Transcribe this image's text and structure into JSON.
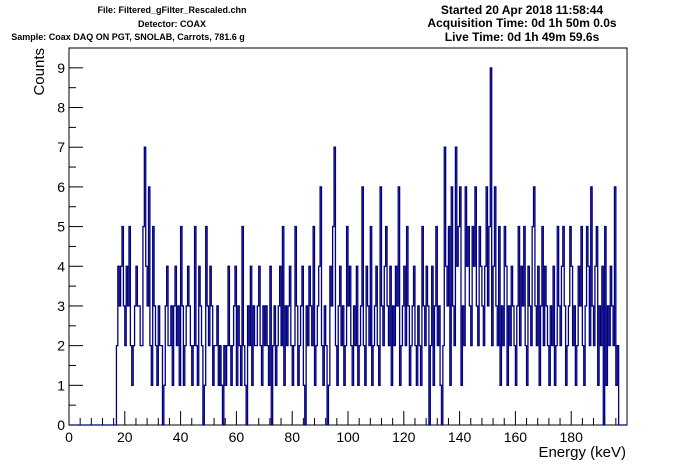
{
  "header": {
    "file_line": "File: Filtered_gFilter_Rescaled.chn",
    "detector_line": "Detector: COAX",
    "sample_line": "Sample: Coax DAQ ON PGT, SNOLAB, Carrots, 781.6 g",
    "started_line": "Started 20 Apr 2018 11:58:44",
    "acquisition_line": "Acquisition Time: 0d 1h 50m 0.0s",
    "live_line": "Live Time: 0d 1h 49m 59.6s"
  },
  "colors": {
    "line": "#000080",
    "axis": "#000000",
    "background": "#ffffff"
  },
  "chart_data": {
    "type": "histogram",
    "title": "",
    "xlabel": "Energy (keV)",
    "ylabel": "Counts",
    "xlim": [
      0,
      200
    ],
    "ylim": [
      0,
      9.5
    ],
    "xticks": [
      0,
      20,
      40,
      60,
      80,
      100,
      120,
      140,
      160,
      180
    ],
    "xtick_labels": [
      "0",
      "20",
      "40",
      "60",
      "80",
      "100",
      "120",
      "140",
      "160",
      "180"
    ],
    "yticks": [
      0,
      1,
      2,
      3,
      4,
      5,
      6,
      7,
      8,
      9
    ],
    "ytick_labels": [
      "0",
      "1",
      "2",
      "3",
      "4",
      "5",
      "6",
      "7",
      "8",
      "9"
    ],
    "grid": false,
    "legend": "none",
    "bin_width": 0.5,
    "bin_start": 17,
    "counts": [
      2,
      4,
      3,
      4,
      5,
      3,
      2,
      4,
      3,
      5,
      2,
      1,
      2,
      3,
      4,
      3,
      3,
      2,
      2,
      5,
      7,
      4,
      3,
      6,
      2,
      1,
      5,
      3,
      2,
      1,
      3,
      2,
      2,
      0,
      1,
      3,
      4,
      2,
      2,
      3,
      1,
      3,
      4,
      2,
      3,
      1,
      5,
      3,
      1,
      2,
      3,
      4,
      3,
      2,
      1,
      2,
      5,
      2,
      1,
      4,
      3,
      2,
      0,
      1,
      5,
      3,
      2,
      4,
      3,
      1,
      2,
      2,
      3,
      1,
      2,
      1,
      0,
      2,
      1,
      2,
      4,
      2,
      1,
      2,
      3,
      4,
      1,
      3,
      2,
      1,
      5,
      2,
      1,
      0,
      3,
      2,
      4,
      1,
      3,
      2,
      2,
      3,
      4,
      2,
      1,
      3,
      2,
      3,
      2,
      1,
      4,
      0,
      2,
      3,
      1,
      2,
      3,
      4,
      2,
      5,
      1,
      3,
      2,
      3,
      4,
      2,
      1,
      2,
      5,
      3,
      1,
      2,
      3,
      4,
      1,
      0,
      3,
      2,
      4,
      3,
      2,
      5,
      1,
      2,
      3,
      4,
      6,
      2,
      1,
      3,
      2,
      0,
      1,
      4,
      3,
      5,
      7,
      2,
      1,
      3,
      4,
      2,
      3,
      1,
      2,
      5,
      3,
      4,
      2,
      1,
      3,
      2,
      4,
      1,
      2,
      3,
      6,
      2,
      1,
      4,
      3,
      2,
      5,
      1,
      2,
      3,
      4,
      2,
      1,
      6,
      3,
      2,
      4,
      5,
      3,
      2,
      4,
      1,
      3,
      2,
      4,
      3,
      6,
      1,
      2,
      3,
      4,
      2,
      5,
      3,
      1,
      2,
      3,
      4,
      2,
      1,
      3,
      2,
      1,
      5,
      3,
      2,
      4,
      3,
      0,
      2,
      4,
      1,
      3,
      5,
      2,
      3,
      1,
      0,
      2,
      7,
      4,
      3,
      5,
      1,
      6,
      3,
      2,
      7,
      4,
      5,
      6,
      1,
      3,
      2,
      6,
      4,
      5,
      3,
      2,
      5,
      4,
      6,
      3,
      2,
      5,
      4,
      3,
      2,
      4,
      6,
      3,
      5,
      9,
      2,
      4,
      6,
      3,
      2,
      5,
      1,
      3,
      2,
      5,
      4,
      1,
      3,
      2,
      4,
      3,
      2,
      1,
      3,
      5,
      2,
      4,
      3,
      5,
      2,
      1,
      4,
      3,
      2,
      5,
      6,
      3,
      2,
      4,
      1,
      3,
      5,
      2,
      4,
      3,
      2,
      1,
      3,
      2,
      4,
      1,
      2,
      5,
      3,
      2,
      4,
      5,
      3,
      1,
      2,
      3,
      5,
      4,
      2,
      3,
      1,
      2,
      4,
      3,
      5,
      2,
      1,
      3,
      5,
      4,
      2,
      6,
      3,
      2,
      4,
      5,
      1,
      3,
      2,
      4,
      0,
      5,
      1,
      3,
      2,
      4,
      3,
      2,
      6,
      1,
      2
    ]
  }
}
